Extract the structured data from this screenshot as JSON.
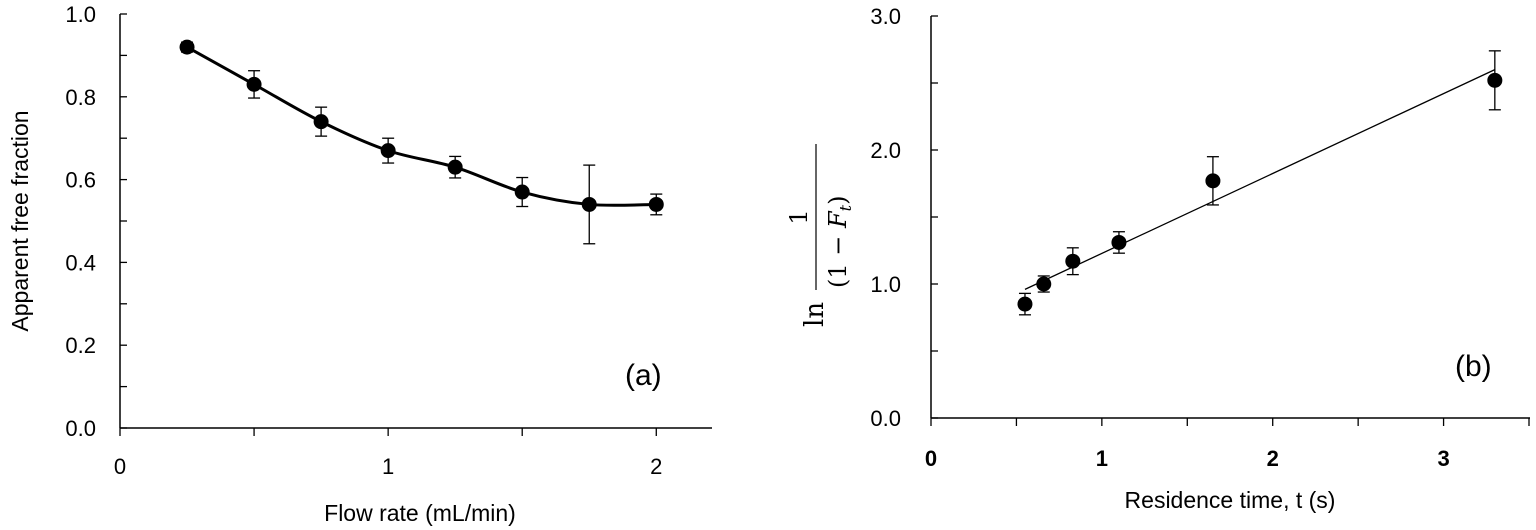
{
  "chart_data": [
    {
      "type": "line",
      "panel_label": "(a)",
      "xlabel": "Flow rate (mL/min)",
      "ylabel": "Apparent free fraction",
      "xlim": [
        0,
        2.15
      ],
      "ylim": [
        0,
        1.0
      ],
      "x_ticks": [
        0,
        1,
        2
      ],
      "y_ticks": [
        0.0,
        0.2,
        0.4,
        0.6,
        0.8,
        1.0
      ],
      "x_tick_labels": [
        "0",
        "1",
        "2"
      ],
      "y_tick_labels": [
        "0.0",
        "0.2",
        "0.4",
        "0.6",
        "0.8",
        "1.0"
      ],
      "grid": false,
      "series": [
        {
          "x": [
            0.25,
            0.5,
            0.75,
            1.0,
            1.25,
            1.5,
            1.75,
            2.0
          ],
          "y": [
            0.92,
            0.83,
            0.74,
            0.67,
            0.63,
            0.57,
            0.54,
            0.54
          ],
          "error": [
            0.012,
            0.033,
            0.035,
            0.03,
            0.026,
            0.035,
            0.095,
            0.025
          ],
          "smooth_line": true
        }
      ]
    },
    {
      "type": "scatter",
      "panel_label": "(b)",
      "xlabel": "Residence time, t (s)",
      "ylabel_parts": {
        "ln": "ln",
        "numerator": "1",
        "denominator_left": "(1 − ",
        "denominator_var": "F",
        "denominator_sub": "t",
        "denominator_right": ")"
      },
      "xlim": [
        0,
        3.5
      ],
      "ylim": [
        0,
        3.0
      ],
      "x_ticks": [
        0,
        1,
        2,
        3
      ],
      "y_ticks": [
        0.0,
        1.0,
        2.0,
        3.0
      ],
      "x_tick_labels": [
        "0",
        "1",
        "2",
        "3"
      ],
      "y_tick_labels": [
        "0.0",
        "1.0",
        "2.0",
        "3.0"
      ],
      "grid": false,
      "series": [
        {
          "x": [
            0.55,
            0.66,
            0.83,
            1.1,
            1.65,
            3.3
          ],
          "y": [
            0.85,
            1.0,
            1.17,
            1.31,
            1.77,
            2.52
          ],
          "error": [
            0.08,
            0.06,
            0.1,
            0.08,
            0.18,
            0.22
          ],
          "trendline": {
            "x": [
              0.55,
              3.3
            ],
            "y": [
              0.96,
              2.6
            ]
          }
        }
      ]
    }
  ]
}
